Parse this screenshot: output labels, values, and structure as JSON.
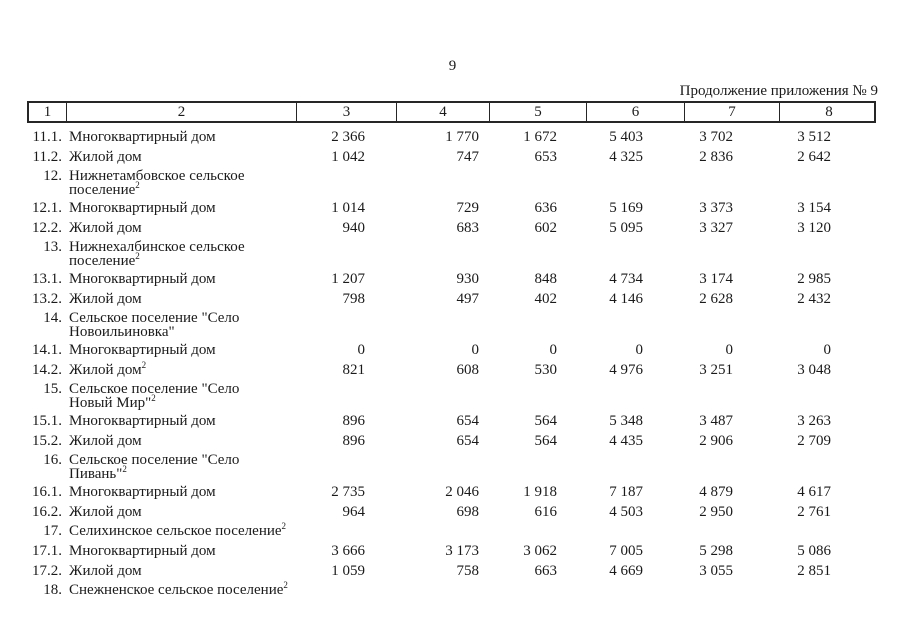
{
  "page": {
    "number": "9",
    "continuation": "Продолжение приложения № 9"
  },
  "table": {
    "header": [
      "1",
      "2",
      "3",
      "4",
      "5",
      "6",
      "7",
      "8"
    ],
    "rows": [
      {
        "type": "item",
        "num": "11.1.",
        "label": "Многоквартирный дом",
        "sup": "",
        "values": [
          "2 366",
          "1 770",
          "1 672",
          "5 403",
          "3 702",
          "3 512"
        ]
      },
      {
        "type": "item",
        "num": "11.2.",
        "label": "Жилой дом",
        "sup": "",
        "values": [
          "1 042",
          "747",
          "653",
          "4 325",
          "2 836",
          "2 642"
        ]
      },
      {
        "type": "section",
        "num": "12.",
        "lines": [
          "Нижнетамбовское сельское",
          "поселение"
        ],
        "sup": "2",
        "values": [
          "",
          "",
          "",
          "",
          "",
          ""
        ]
      },
      {
        "type": "item",
        "num": "12.1.",
        "label": "Многоквартирный дом",
        "sup": "",
        "values": [
          "1 014",
          "729",
          "636",
          "5 169",
          "3 373",
          "3 154"
        ]
      },
      {
        "type": "item",
        "num": "12.2.",
        "label": "Жилой дом",
        "sup": "",
        "values": [
          "940",
          "683",
          "602",
          "5 095",
          "3 327",
          "3 120"
        ]
      },
      {
        "type": "section",
        "num": "13.",
        "lines": [
          "Нижнехалбинское сельское",
          "поселение"
        ],
        "sup": "2",
        "values": [
          "",
          "",
          "",
          "",
          "",
          ""
        ]
      },
      {
        "type": "item",
        "num": "13.1.",
        "label": "Многоквартирный дом",
        "sup": "",
        "values": [
          "1 207",
          "930",
          "848",
          "4 734",
          "3 174",
          "2 985"
        ]
      },
      {
        "type": "item",
        "num": "13.2.",
        "label": "Жилой дом",
        "sup": "",
        "values": [
          "798",
          "497",
          "402",
          "4 146",
          "2 628",
          "2 432"
        ]
      },
      {
        "type": "section",
        "num": "14.",
        "lines": [
          "Сельское поселение \"Село",
          "Новоильиновка\""
        ],
        "sup": "",
        "values": [
          "",
          "",
          "",
          "",
          "",
          ""
        ]
      },
      {
        "type": "item",
        "num": "14.1.",
        "label": "Многоквартирный дом",
        "sup": "",
        "values": [
          "0",
          "0",
          "0",
          "0",
          "0",
          "0"
        ]
      },
      {
        "type": "item",
        "num": "14.2.",
        "label": "Жилой дом",
        "sup": "2",
        "values": [
          "821",
          "608",
          "530",
          "4 976",
          "3 251",
          "3 048"
        ]
      },
      {
        "type": "section",
        "num": "15.",
        "lines": [
          "Сельское поселение \"Село",
          "Новый Мир\""
        ],
        "sup": "2",
        "values": [
          "",
          "",
          "",
          "",
          "",
          ""
        ]
      },
      {
        "type": "item",
        "num": "15.1.",
        "label": "Многоквартирный дом",
        "sup": "",
        "values": [
          "896",
          "654",
          "564",
          "5 348",
          "3 487",
          "3 263"
        ]
      },
      {
        "type": "item",
        "num": "15.2.",
        "label": "Жилой дом",
        "sup": "",
        "values": [
          "896",
          "654",
          "564",
          "4 435",
          "2 906",
          "2 709"
        ]
      },
      {
        "type": "section",
        "num": "16.",
        "lines": [
          "Сельское поселение \"Село",
          "Пивань\""
        ],
        "sup": "2",
        "values": [
          "",
          "",
          "",
          "",
          "",
          ""
        ]
      },
      {
        "type": "item",
        "num": "16.1.",
        "label": "Многоквартирный дом",
        "sup": "",
        "values": [
          "2 735",
          "2 046",
          "1 918",
          "7 187",
          "4 879",
          "4 617"
        ]
      },
      {
        "type": "item",
        "num": "16.2.",
        "label": "Жилой дом",
        "sup": "",
        "values": [
          "964",
          "698",
          "616",
          "4 503",
          "2 950",
          "2 761"
        ]
      },
      {
        "type": "section",
        "num": "17.",
        "lines": [
          "Селихинское сельское поселение"
        ],
        "sup": "2",
        "values": [
          "",
          "",
          "",
          "",
          "",
          ""
        ]
      },
      {
        "type": "item",
        "num": "17.1.",
        "label": "Многоквартирный дом",
        "sup": "",
        "values": [
          "3 666",
          "3 173",
          "3 062",
          "7 005",
          "5 298",
          "5 086"
        ]
      },
      {
        "type": "item",
        "num": "17.2.",
        "label": "Жилой дом",
        "sup": "",
        "values": [
          "1 059",
          "758",
          "663",
          "4 669",
          "3 055",
          "2 851"
        ]
      },
      {
        "type": "section",
        "num": "18.",
        "lines": [
          "Снежненское сельское поселение"
        ],
        "sup": "2",
        "values": [
          "",
          "",
          "",
          "",
          "",
          ""
        ]
      }
    ]
  }
}
